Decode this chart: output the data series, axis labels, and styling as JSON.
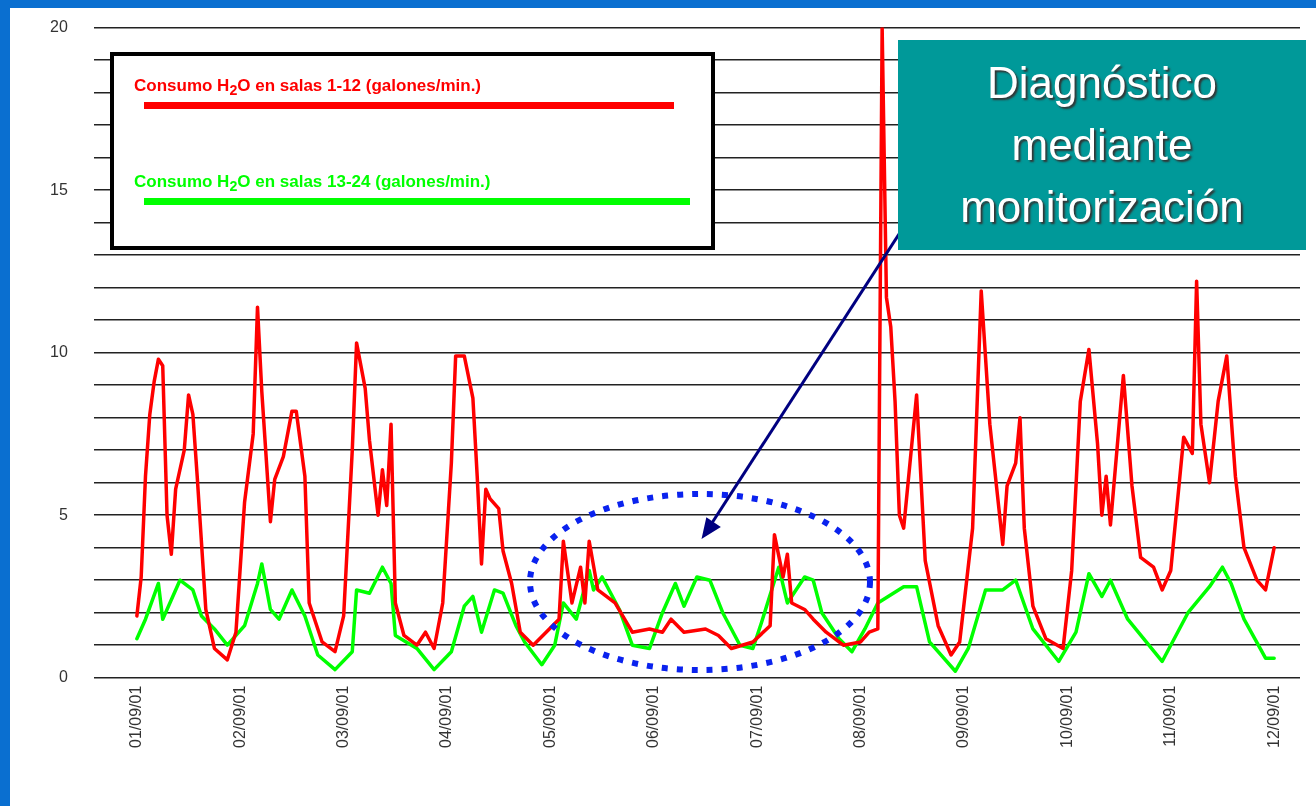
{
  "chart_data": {
    "type": "line",
    "legend": "top left",
    "grid": "y",
    "marker": "none",
    "line_style": "solid",
    "xlim": [
      "--08-31T14:00",
      "--09-12T06:00"
    ],
    "xticks": [
      {
        "value": "--09-01",
        "label": "01/09/01"
      },
      {
        "value": "--09-02",
        "label": "02/09/01"
      },
      {
        "value": "--09-03",
        "label": "03/09/01"
      },
      {
        "value": "--09-04",
        "label": "04/09/01"
      },
      {
        "value": "--09-05",
        "label": "05/09/01"
      },
      {
        "value": "--09-06",
        "label": "06/09/01"
      },
      {
        "value": "--09-07",
        "label": "07/09/01"
      },
      {
        "value": "--09-08",
        "label": "08/09/01"
      },
      {
        "value": "--09-09",
        "label": "09/09/01"
      },
      {
        "value": "--09-10",
        "label": "10/09/01"
      },
      {
        "value": "--09-11",
        "label": "11/09/01"
      },
      {
        "value": "--09-12",
        "label": "12/09/01"
      }
    ],
    "ylim": [
      0,
      20
    ],
    "yticks": [
      0,
      {
        "value": 1,
        "label": null
      },
      {
        "value": 2,
        "label": null
      },
      {
        "value": 3,
        "label": null
      },
      {
        "value": 4,
        "label": null
      },
      5,
      {
        "value": 6,
        "label": null
      },
      {
        "value": 7,
        "label": null
      },
      {
        "value": 8,
        "label": null
      },
      {
        "value": 9,
        "label": null
      },
      10,
      {
        "value": 11,
        "label": null
      },
      {
        "value": 12,
        "label": null
      },
      {
        "value": 13,
        "label": null
      },
      {
        "value": 14,
        "label": null
      },
      15,
      {
        "value": 16,
        "label": null
      },
      {
        "value": 17,
        "label": null
      },
      {
        "value": 18,
        "label": null
      },
      {
        "value": 19,
        "label": null
      },
      20
    ],
    "annotations": [
      "Diagnóstico mediante monitorización"
    ],
    "series": [
      {
        "name": "Consumo H$_{2}$O en salas 1-12 (galones/min.)",
        "color": "#ff0000",
        "x": [
          "--09-01T00:00",
          "--09-01T01:00",
          "--09-01T02:00",
          "--09-01T03:00",
          "--09-01T04:00",
          "--09-01T05:00",
          "--09-01T06:00",
          "--09-01T07:00",
          "--09-01T08:00",
          "--09-01T09:00",
          "--09-01T11:00",
          "--09-01T12:00",
          "--09-01T13:00",
          "--09-01T14:00",
          "--09-01T16:00",
          "--09-01T18:00",
          "--09-01T21:00",
          "--09-01T23:00",
          "--09-02T01:00",
          "--09-02T03:00",
          "--09-02T04:00",
          "--09-02T05:00",
          "--09-02T07:00",
          "--09-02T08:00",
          "--09-02T10:00",
          "--09-02T12:00",
          "--09-02T13:00",
          "--09-02T15:00",
          "--09-02T16:00",
          "--09-02T19:00",
          "--09-02T22:00",
          "--09-03T00:00",
          "--09-03T02:00",
          "--09-03T03:00",
          "--09-03T05:00",
          "--09-03T06:00",
          "--09-03T08:00",
          "--09-03T09:00",
          "--09-03T10:00",
          "--09-03T11:00",
          "--09-03T12:00",
          "--09-03T14:00",
          "--09-03T17:00",
          "--09-03T19:00",
          "--09-03T21:00",
          "--09-03T23:00",
          "--09-04T01:00",
          "--09-04T02:00",
          "--09-04T04:00",
          "--09-04T06:00",
          "--09-04T07:00",
          "--09-04T08:00",
          "--09-04T09:00",
          "--09-04T10:00",
          "--09-04T12:00",
          "--09-04T13:00",
          "--09-04T15:00",
          "--09-04T17:00",
          "--09-04T20:00",
          "--09-04T23:00",
          "--09-05T02:00",
          "--09-05T03:00",
          "--09-05T05:00",
          "--09-05T07:00",
          "--09-05T08:00",
          "--09-05T09:00",
          "--09-05T11:00",
          "--09-05T15:00",
          "--09-05T19:00",
          "--09-05T23:00",
          "--09-06T02:00",
          "--09-06T04:00",
          "--09-06T07:00",
          "--09-06T12:00",
          "--09-06T15:00",
          "--09-06T18:00",
          "--09-06T23:00",
          "--09-07T03:00",
          "--09-07T04:00",
          "--09-07T06:00",
          "--09-07T07:00",
          "--09-07T08:00",
          "--09-07T11:00",
          "--09-07T13:00",
          "--09-07T16:00",
          "--09-07T20:00",
          "--09-08T00:00",
          "--09-08T02:00",
          "--09-08T04:00",
          "--09-08T05:00",
          "--09-08T06:00",
          "--09-08T07:00",
          "--09-08T08:00",
          "--09-08T09:00",
          "--09-08T10:00",
          "--09-08T13:00",
          "--09-08T15:00",
          "--09-08T18:00",
          "--09-08T21:00",
          "--09-08T23:00",
          "--09-09T02:00",
          "--09-09T04:00",
          "--09-09T06:00",
          "--09-09T09:00",
          "--09-09T10:00",
          "--09-09T12:00",
          "--09-09T13:00",
          "--09-09T14:00",
          "--09-09T16:00",
          "--09-09T19:00",
          "--09-09T23:00",
          "--09-10T01:00",
          "--09-10T03:00",
          "--09-10T05:00",
          "--09-10T07:00",
          "--09-10T08:00",
          "--09-10T09:00",
          "--09-10T10:00",
          "--09-10T13:00",
          "--09-10T15:00",
          "--09-10T17:00",
          "--09-10T20:00",
          "--09-10T22:00",
          "--09-11T00:00",
          "--09-11T03:00",
          "--09-11T05:00",
          "--09-11T06:00",
          "--09-11T07:00",
          "--09-11T09:00",
          "--09-11T11:00",
          "--09-11T13:00",
          "--09-11T15:00",
          "--09-11T17:00",
          "--09-11T20:00",
          "--09-11T22:00",
          "--09-12T00:00"
        ],
        "values": [
          1.9,
          3.1,
          6.2,
          8.1,
          9.1,
          9.8,
          9.6,
          5.0,
          3.8,
          5.8,
          7.0,
          8.7,
          8.1,
          6.2,
          2.1,
          0.9,
          0.55,
          1.4,
          5.4,
          7.5,
          11.4,
          8.8,
          4.8,
          6.1,
          6.8,
          8.2,
          8.2,
          6.2,
          2.3,
          1.1,
          0.8,
          1.9,
          7.0,
          10.3,
          8.9,
          7.3,
          5.0,
          6.4,
          5.3,
          7.8,
          2.3,
          1.3,
          1.0,
          1.4,
          0.9,
          2.3,
          6.6,
          9.9,
          9.9,
          8.6,
          6.2,
          3.5,
          5.8,
          5.5,
          5.2,
          3.9,
          2.9,
          1.4,
          1.0,
          1.4,
          1.8,
          4.2,
          2.3,
          3.4,
          2.3,
          4.2,
          2.7,
          2.3,
          1.4,
          1.5,
          1.4,
          1.8,
          1.4,
          1.5,
          1.3,
          0.9,
          1.1,
          1.6,
          4.4,
          3.1,
          3.8,
          2.3,
          2.1,
          1.8,
          1.4,
          1.0,
          1.1,
          1.4,
          1.5,
          20,
          11.7,
          10.8,
          8.5,
          5.0,
          4.6,
          8.7,
          3.6,
          1.6,
          0.7,
          1.1,
          4.6,
          11.9,
          7.8,
          4.1,
          5.9,
          6.6,
          8.0,
          4.6,
          2.2,
          1.2,
          0.9,
          3.3,
          8.5,
          10.1,
          7.2,
          5.0,
          6.2,
          4.7,
          9.3,
          5.9,
          3.7,
          3.4,
          2.7,
          3.3,
          7.4,
          6.9,
          12.2,
          7.8,
          6.0,
          8.5,
          9.9,
          6.2,
          4.0,
          3.0,
          2.7,
          4.0
        ]
      },
      {
        "name": "Consumo H$_{2}$O en salas 13-24 (galones/min.)",
        "color": "#00ff00",
        "x": [
          "--09-01T00:00",
          "--09-01T02:00",
          "--09-01T05:00",
          "--09-01T06:00",
          "--09-01T10:00",
          "--09-01T13:00",
          "--09-01T15:00",
          "--09-01T18:00",
          "--09-01T21:00",
          "--09-02T01:00",
          "--09-02T04:00",
          "--09-02T05:00",
          "--09-02T07:00",
          "--09-02T09:00",
          "--09-02T12:00",
          "--09-02T15:00",
          "--09-02T18:00",
          "--09-02T22:00",
          "--09-03T02:00",
          "--09-03T03:00",
          "--09-03T06:00",
          "--09-03T09:00",
          "--09-03T11:00",
          "--09-03T12:00",
          "--09-03T17:00",
          "--09-03T21:00",
          "--09-04T01:00",
          "--09-04T04:00",
          "--09-04T06:00",
          "--09-04T08:00",
          "--09-04T11:00",
          "--09-04T13:00",
          "--09-04T16:00",
          "--09-04T18:00",
          "--09-04T22:00",
          "--09-05T01:00",
          "--09-05T03:00",
          "--09-05T06:00",
          "--09-05T09:00",
          "--09-05T10:00",
          "--09-05T12:00",
          "--09-05T16:00",
          "--09-05T19:00",
          "--09-05T23:00",
          "--09-06T02:00",
          "--09-06T05:00",
          "--09-06T07:00",
          "--09-06T10:00",
          "--09-06T13:00",
          "--09-06T16:00",
          "--09-06T20:00",
          "--09-06T23:00",
          "--09-07T01:00",
          "--09-07T05:00",
          "--09-07T07:00",
          "--09-07T11:00",
          "--09-07T13:00",
          "--09-07T15:00",
          "--09-07T19:00",
          "--09-07T22:00",
          "--09-08T01:00",
          "--09-08T04:00",
          "--09-08T10:00",
          "--09-08T13:00",
          "--09-08T16:00",
          "--09-08T22:00",
          "--09-09T01:00",
          "--09-09T05:00",
          "--09-09T09:00",
          "--09-09T12:00",
          "--09-09T16:00",
          "--09-09T22:00",
          "--09-10T02:00",
          "--09-10T05:00",
          "--09-10T08:00",
          "--09-10T10:00",
          "--09-10T14:00",
          "--09-10T22:00",
          "--09-11T04:00",
          "--09-11T09:00",
          "--09-11T12:00",
          "--09-11T14:00",
          "--09-11T17:00",
          "--09-11T22:00",
          "--09-12T00:00"
        ],
        "values": [
          1.2,
          1.8,
          2.9,
          1.8,
          3.0,
          2.7,
          1.9,
          1.5,
          1.0,
          1.6,
          2.9,
          3.5,
          2.1,
          1.8,
          2.7,
          1.9,
          0.7,
          0.25,
          0.8,
          2.7,
          2.6,
          3.4,
          2.9,
          1.3,
          0.9,
          0.25,
          0.8,
          2.2,
          2.5,
          1.4,
          2.7,
          2.6,
          1.6,
          1.1,
          0.4,
          1.0,
          2.3,
          1.8,
          3.3,
          2.7,
          3.1,
          2.1,
          1.0,
          0.9,
          2.0,
          2.9,
          2.2,
          3.1,
          3.0,
          2.0,
          1.0,
          0.9,
          1.7,
          3.4,
          2.3,
          3.1,
          3.0,
          2.0,
          1.2,
          0.8,
          1.5,
          2.3,
          2.8,
          2.8,
          1.1,
          0.2,
          0.9,
          2.7,
          2.7,
          3.0,
          1.5,
          0.5,
          1.4,
          3.2,
          2.5,
          3.0,
          1.8,
          0.5,
          2.0,
          2.8,
          3.4,
          2.9,
          1.8,
          0.6,
          0.6
        ]
      }
    ]
  }
}
